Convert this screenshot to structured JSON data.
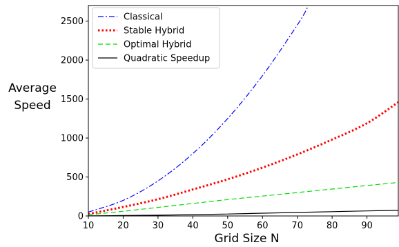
{
  "chart_data": {
    "type": "line",
    "title": "",
    "xlabel": "Grid Size  N",
    "ylabel_lines": [
      "Average",
      "Speed"
    ],
    "xlim": [
      10,
      99
    ],
    "ylim": [
      0,
      2700
    ],
    "xticks": [
      10,
      20,
      30,
      40,
      50,
      60,
      70,
      80,
      90
    ],
    "yticks": [
      0,
      500,
      1000,
      1500,
      2000,
      2500
    ],
    "grid": false,
    "legend_position": "upper-left",
    "series": [
      {
        "name": "Classical",
        "color": "#0000ff",
        "style": "dashdot",
        "x": [
          10,
          20,
          30,
          40,
          50,
          60,
          70,
          73
        ],
        "y": [
          50,
          200,
          450,
          800,
          1250,
          1800,
          2450,
          2680
        ]
      },
      {
        "name": "Stable Hybrid",
        "color": "#ff0000",
        "style": "dotted",
        "x": [
          10,
          20,
          30,
          40,
          50,
          60,
          70,
          80,
          90,
          99
        ],
        "y": [
          25,
          115,
          215,
          340,
          470,
          620,
          790,
          980,
          1190,
          1460
        ]
      },
      {
        "name": "Optimal Hybrid",
        "color": "#00dd00",
        "style": "dashed",
        "x": [
          10,
          20,
          30,
          40,
          50,
          60,
          70,
          80,
          90,
          99
        ],
        "y": [
          15,
          60,
          110,
          160,
          210,
          255,
          300,
          345,
          390,
          430
        ]
      },
      {
        "name": "Quadratic Speedup",
        "color": "#000000",
        "style": "solid",
        "x": [
          10,
          20,
          30,
          40,
          50,
          60,
          70,
          80,
          90,
          99
        ],
        "y": [
          1,
          5,
          10,
          17,
          25,
          35,
          45,
          55,
          65,
          72
        ]
      }
    ]
  }
}
